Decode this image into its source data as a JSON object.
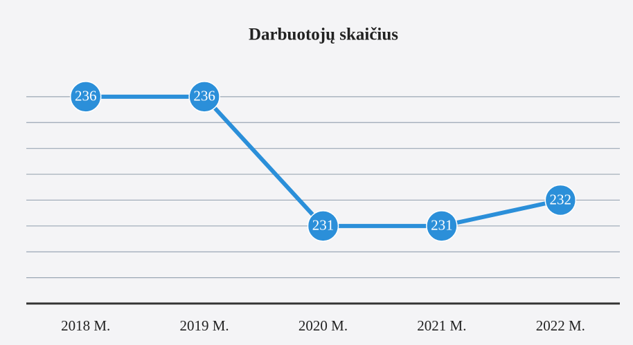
{
  "chart_data": {
    "type": "line",
    "title": "Darbuotojų skaičius",
    "categories": [
      "2018 M.",
      "2019 M.",
      "2020 M.",
      "2021 M.",
      "2022 M."
    ],
    "values": [
      236,
      236,
      231,
      231,
      232
    ],
    "color": "#2b8fd9",
    "ylim": [
      228,
      237
    ],
    "yticks": [
      228,
      229,
      230,
      231,
      232,
      233,
      234,
      235,
      236
    ],
    "grid": true
  }
}
